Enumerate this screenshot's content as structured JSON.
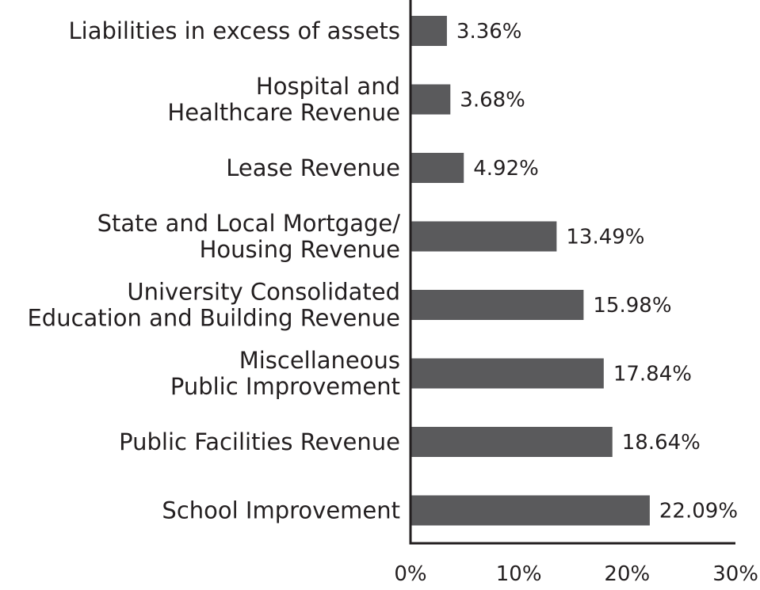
{
  "chart_data": {
    "type": "bar",
    "orientation": "horizontal",
    "title": "",
    "xlabel": "",
    "ylabel": "",
    "xlim": [
      0,
      30
    ],
    "grid": false,
    "bar_color": "#5a5a5c",
    "categories": [
      [
        "Liabilities in excess of assets"
      ],
      [
        "Hospital and",
        "Healthcare Revenue"
      ],
      [
        "Lease Revenue"
      ],
      [
        "State and Local Mortgage/",
        "Housing Revenue"
      ],
      [
        "University Consolidated",
        "Education and Building Revenue"
      ],
      [
        "Miscellaneous",
        "Public Improvement"
      ],
      [
        "Public Facilities Revenue"
      ],
      [
        "School Improvement"
      ]
    ],
    "values": [
      3.36,
      3.68,
      4.92,
      13.49,
      15.98,
      17.84,
      18.64,
      22.09
    ],
    "value_labels": [
      "3.36%",
      "3.68%",
      "4.92%",
      "13.49%",
      "15.98%",
      "17.84%",
      "18.64%",
      "22.09%"
    ],
    "ticks": [
      0,
      10,
      20,
      30
    ],
    "tick_labels": [
      "0%",
      "10%",
      "20%",
      "30%"
    ]
  }
}
